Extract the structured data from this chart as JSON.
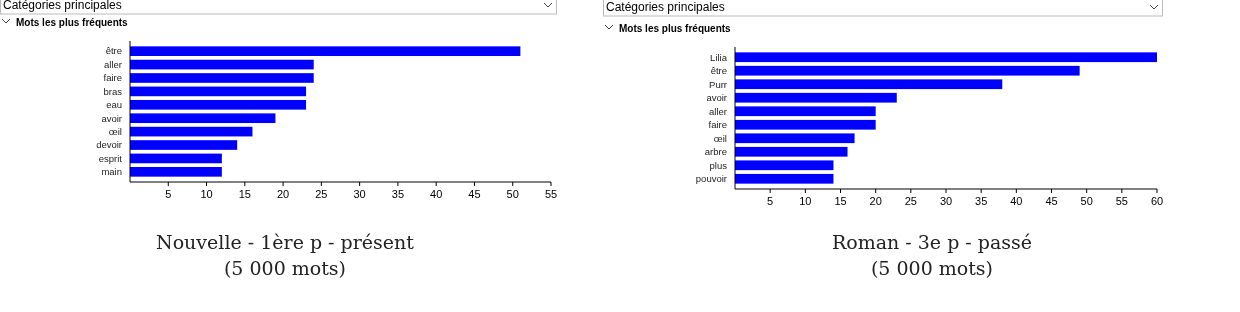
{
  "chart_data": [
    {
      "type": "bar",
      "orientation": "horizontal",
      "title": "Mots les plus fréquents",
      "categories": [
        "être",
        "aller",
        "faire",
        "bras",
        "eau",
        "avoir",
        "œil",
        "devoir",
        "esprit",
        "main"
      ],
      "values": [
        51,
        24,
        24,
        23,
        23,
        19,
        16,
        14,
        12,
        12
      ],
      "color": "#0000ff",
      "xlim": [
        0,
        55
      ],
      "xticks": [
        5,
        10,
        15,
        20,
        25,
        30,
        35,
        40,
        45,
        50,
        55
      ],
      "annotations": [
        "Catégories principales",
        "Nouvelle - 1ère p - présent",
        "(5 000 mots)"
      ]
    },
    {
      "type": "bar",
      "orientation": "horizontal",
      "title": "Mots les plus fréquents",
      "categories": [
        "Lilia",
        "être",
        "Purr",
        "avoir",
        "aller",
        "faire",
        "œil",
        "arbre",
        "plus",
        "pouvoir"
      ],
      "values": [
        60,
        49,
        38,
        23,
        20,
        20,
        17,
        16,
        14,
        14
      ],
      "color": "#0000ff",
      "xlim": [
        0,
        60
      ],
      "xticks": [
        5,
        10,
        15,
        20,
        25,
        30,
        35,
        40,
        45,
        50,
        55,
        60
      ],
      "annotations": [
        "Catégories principales",
        "Roman - 3e p - passé",
        "(5 000 mots)"
      ]
    }
  ]
}
